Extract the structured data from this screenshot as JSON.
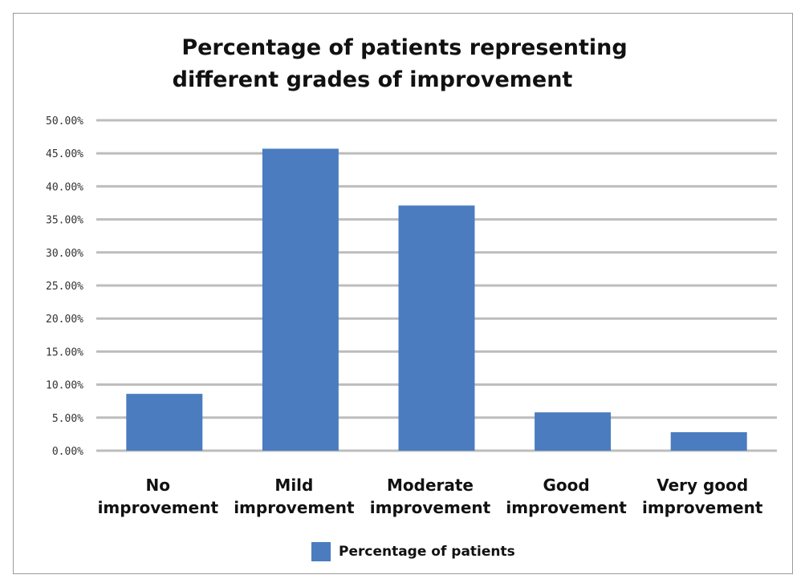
{
  "chart_data": {
    "type": "bar",
    "title_lines": [
      "Percentage of patients representing",
      "different grades of improvement"
    ],
    "categories": [
      [
        "No",
        "improvement"
      ],
      [
        "Mild",
        "improvement"
      ],
      [
        "Moderate",
        "improvement"
      ],
      [
        "Good",
        "improvement"
      ],
      [
        "Very good",
        "improvement"
      ]
    ],
    "series": [
      {
        "name": "Percentage of patients",
        "values": [
          8.6,
          45.7,
          37.1,
          5.8,
          2.8
        ]
      }
    ],
    "ylim": [
      0,
      50
    ],
    "yticks": [
      0,
      5,
      10,
      15,
      20,
      25,
      30,
      35,
      40,
      45,
      50
    ],
    "ytick_labels": [
      "0.00%",
      "5.00%",
      "10.00%",
      "15.00%",
      "20.00%",
      "25.00%",
      "30.00%",
      "35.00%",
      "40.00%",
      "45.00%",
      "50.00%"
    ],
    "grid": true,
    "legend_position": "bottom",
    "colors": {
      "bar": "#4a7cbf",
      "grid": "#bdbdbd"
    }
  }
}
